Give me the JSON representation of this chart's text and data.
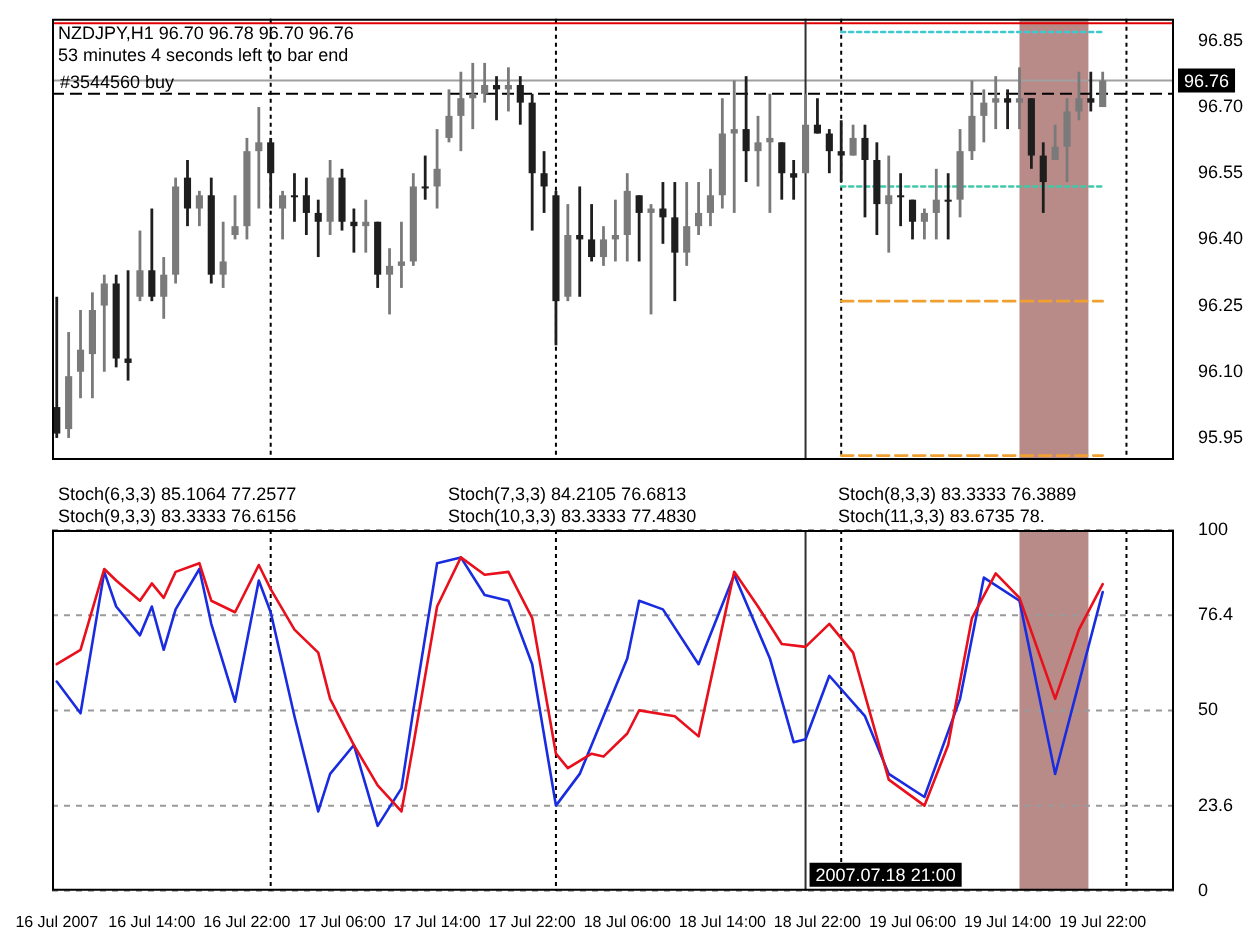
{
  "chart_data": [
    {
      "type": "candlestick",
      "title": "NZDJPY,H1 96.70 96.78 96.70 96.76",
      "subtitle": "53 minutes 4 seconds left to bar end",
      "colors": [
        "#1e1e1e",
        "#7a7a7a",
        "#7a7a7a",
        "#7a7a7a",
        "#7a7a7a",
        "#1e1e1e",
        "#1e1e1e",
        "#7a7a7a",
        "#1e1e1e",
        "#7a7a7a",
        "#7a7a7a",
        "#1e1e1e",
        "#7a7a7a",
        "#1e1e1e",
        "#7a7a7a",
        "#7a7a7a",
        "#7a7a7a",
        "#7a7a7a",
        "#1e1e1e",
        "#7a7a7a",
        "#1e1e1e",
        "#1e1e1e",
        "#1e1e1e",
        "#7a7a7a",
        "#1e1e1e",
        "#1e1e1e",
        "#7a7a7a",
        "#1e1e1e",
        "#7a7a7a",
        "#7a7a7a",
        "#7a7a7a",
        "#1e1e1e",
        "#7a7a7a",
        "#7a7a7a",
        "#7a7a7a",
        "#7a7a7a",
        "#7a7a7a",
        "#1e1e1e",
        "#7a7a7a",
        "#1e1e1e",
        "#1e1e1e",
        "#1e1e1e",
        "#1e1e1e",
        "#7a7a7a",
        "#1e1e1e",
        "#1e1e1e",
        "#7a7a7a",
        "#7a7a7a",
        "#7a7a7a",
        "#1e1e1e",
        "#7a7a7a",
        "#1e1e1e",
        "#1e1e1e",
        "#7a7a7a",
        "#7a7a7a",
        "#7a7a7a",
        "#7a7a7a",
        "#7a7a7a",
        "#1e1e1e",
        "#7a7a7a",
        "#7a7a7a",
        "#1e1e1e",
        "#1e1e1e",
        "#7a7a7a",
        "#1e1e1e",
        "#1e1e1e",
        "#1e1e1e",
        "#7a7a7a",
        "#1e1e1e",
        "#1e1e1e",
        "#7a7a7a",
        "#1e1e1e",
        "#1e1e1e",
        "#7a7a7a",
        "#7a7a7a",
        "#1e1e1e",
        "#7a7a7a",
        "#7a7a7a",
        "#7a7a7a",
        "#7a7a7a",
        "#1e1e1e",
        "#7a7a7a",
        "#1e1e1e",
        "#1e1e1e",
        "#7a7a7a",
        "#7a7a7a",
        "#7a7a7a",
        "#1e1e1e",
        "#7a7a7a"
      ],
      "x": [
        "2007-07-16T06:00",
        "2007-07-16T07:00",
        "2007-07-16T08:00",
        "2007-07-16T09:00",
        "2007-07-16T10:00",
        "2007-07-16T11:00",
        "2007-07-16T12:00",
        "2007-07-16T13:00",
        "2007-07-16T14:00",
        "2007-07-16T15:00",
        "2007-07-16T16:00",
        "2007-07-16T17:00",
        "2007-07-16T18:00",
        "2007-07-16T19:00",
        "2007-07-16T20:00",
        "2007-07-16T21:00",
        "2007-07-16T22:00",
        "2007-07-16T23:00",
        "2007-07-17T00:00",
        "2007-07-17T01:00",
        "2007-07-17T02:00",
        "2007-07-17T03:00",
        "2007-07-17T04:00",
        "2007-07-17T05:00",
        "2007-07-17T06:00",
        "2007-07-17T07:00",
        "2007-07-17T08:00",
        "2007-07-17T09:00",
        "2007-07-17T10:00",
        "2007-07-17T11:00",
        "2007-07-17T12:00",
        "2007-07-17T13:00",
        "2007-07-17T14:00",
        "2007-07-17T15:00",
        "2007-07-17T16:00",
        "2007-07-17T17:00",
        "2007-07-17T18:00",
        "2007-07-17T19:00",
        "2007-07-17T20:00",
        "2007-07-17T21:00",
        "2007-07-17T22:00",
        "2007-07-17T23:00",
        "2007-07-18T00:00",
        "2007-07-18T01:00",
        "2007-07-18T02:00",
        "2007-07-18T03:00",
        "2007-07-18T04:00",
        "2007-07-18T05:00",
        "2007-07-18T06:00",
        "2007-07-18T07:00",
        "2007-07-18T08:00",
        "2007-07-18T09:00",
        "2007-07-18T10:00",
        "2007-07-18T11:00",
        "2007-07-18T12:00",
        "2007-07-18T13:00",
        "2007-07-18T14:00",
        "2007-07-18T15:00",
        "2007-07-18T16:00",
        "2007-07-18T17:00",
        "2007-07-18T18:00",
        "2007-07-18T19:00",
        "2007-07-18T20:00",
        "2007-07-18T21:00",
        "2007-07-18T22:00",
        "2007-07-18T23:00",
        "2007-07-19T00:00",
        "2007-07-19T01:00",
        "2007-07-19T02:00",
        "2007-07-19T03:00",
        "2007-07-19T04:00",
        "2007-07-19T05:00",
        "2007-07-19T06:00",
        "2007-07-19T07:00",
        "2007-07-19T08:00",
        "2007-07-19T09:00",
        "2007-07-19T10:00",
        "2007-07-19T11:00",
        "2007-07-19T12:00",
        "2007-07-19T13:00",
        "2007-07-19T14:00",
        "2007-07-19T15:00",
        "2007-07-19T16:00",
        "2007-07-19T17:00",
        "2007-07-19T18:00",
        "2007-07-19T19:00",
        "2007-07-19T20:00",
        "2007-07-19T21:00",
        "2007-07-19T22:00"
      ],
      "ohlc": [
        [
          96.02,
          96.27,
          95.95,
          95.96
        ],
        [
          95.97,
          96.19,
          95.95,
          96.09
        ],
        [
          96.1,
          96.24,
          96.04,
          96.15
        ],
        [
          96.14,
          96.28,
          96.04,
          96.24
        ],
        [
          96.25,
          96.32,
          96.1,
          96.3
        ],
        [
          96.3,
          96.32,
          96.11,
          96.13
        ],
        [
          96.13,
          96.33,
          96.08,
          96.12
        ],
        [
          96.27,
          96.42,
          96.26,
          96.33
        ],
        [
          96.33,
          96.47,
          96.26,
          96.27
        ],
        [
          96.27,
          96.36,
          96.22,
          96.32
        ],
        [
          96.32,
          96.54,
          96.3,
          96.52
        ],
        [
          96.54,
          96.58,
          96.43,
          96.47
        ],
        [
          96.47,
          96.51,
          96.43,
          96.5
        ],
        [
          96.5,
          96.54,
          96.3,
          96.32
        ],
        [
          96.32,
          96.44,
          96.29,
          96.35
        ],
        [
          96.41,
          96.5,
          96.4,
          96.43
        ],
        [
          96.43,
          96.63,
          96.4,
          96.6
        ],
        [
          96.6,
          96.7,
          96.47,
          96.62
        ],
        [
          96.62,
          96.63,
          96.47,
          96.55
        ],
        [
          96.47,
          96.51,
          96.4,
          96.5
        ],
        [
          96.5,
          96.55,
          96.44,
          96.5
        ],
        [
          96.5,
          96.54,
          96.41,
          96.46
        ],
        [
          96.46,
          96.49,
          96.36,
          96.44
        ],
        [
          96.44,
          96.58,
          96.41,
          96.54
        ],
        [
          96.54,
          96.56,
          96.42,
          96.44
        ],
        [
          96.44,
          96.47,
          96.37,
          96.43
        ],
        [
          96.43,
          96.49,
          96.37,
          96.44
        ],
        [
          96.44,
          96.44,
          96.29,
          96.32
        ],
        [
          96.32,
          96.38,
          96.23,
          96.34
        ],
        [
          96.34,
          96.44,
          96.29,
          96.35
        ],
        [
          96.35,
          96.55,
          96.34,
          96.52
        ],
        [
          96.52,
          96.59,
          96.49,
          96.52
        ],
        [
          96.52,
          96.65,
          96.47,
          96.56
        ],
        [
          96.63,
          96.74,
          96.62,
          96.68
        ],
        [
          96.68,
          96.78,
          96.6,
          96.72
        ],
        [
          96.72,
          96.8,
          96.65,
          96.73
        ],
        [
          96.73,
          96.8,
          96.71,
          96.75
        ],
        [
          96.75,
          96.77,
          96.67,
          96.74
        ],
        [
          96.74,
          96.79,
          96.69,
          96.75
        ],
        [
          96.75,
          96.77,
          96.66,
          96.71
        ],
        [
          96.71,
          96.73,
          96.42,
          96.55
        ],
        [
          96.55,
          96.6,
          96.46,
          96.52
        ],
        [
          96.5,
          96.51,
          96.16,
          96.26
        ],
        [
          96.27,
          96.48,
          96.26,
          96.41
        ],
        [
          96.41,
          96.52,
          96.27,
          96.4
        ],
        [
          96.4,
          96.48,
          96.35,
          96.36
        ],
        [
          96.36,
          96.43,
          96.34,
          96.4
        ],
        [
          96.4,
          96.49,
          96.35,
          96.41
        ],
        [
          96.41,
          96.55,
          96.35,
          96.51
        ],
        [
          96.5,
          96.5,
          96.35,
          96.46
        ],
        [
          96.46,
          96.48,
          96.23,
          96.47
        ],
        [
          96.47,
          96.53,
          96.39,
          96.45
        ],
        [
          96.45,
          96.53,
          96.26,
          96.37
        ],
        [
          96.37,
          96.53,
          96.34,
          96.43
        ],
        [
          96.43,
          96.53,
          96.41,
          96.46
        ],
        [
          96.46,
          96.56,
          96.43,
          96.5
        ],
        [
          96.5,
          96.72,
          96.47,
          96.64
        ],
        [
          96.64,
          96.76,
          96.46,
          96.65
        ],
        [
          96.65,
          96.77,
          96.53,
          96.6
        ],
        [
          96.6,
          96.68,
          96.52,
          96.62
        ],
        [
          96.62,
          96.73,
          96.46,
          96.63
        ],
        [
          96.62,
          96.62,
          96.49,
          96.55
        ],
        [
          96.55,
          96.58,
          96.49,
          96.54
        ],
        [
          96.55,
          96.73,
          96.55,
          96.66
        ],
        [
          96.66,
          96.72,
          96.64,
          96.64
        ],
        [
          96.64,
          96.65,
          96.55,
          96.6
        ],
        [
          96.6,
          96.67,
          96.53,
          96.59
        ],
        [
          96.59,
          96.66,
          96.59,
          96.63
        ],
        [
          96.63,
          96.66,
          96.45,
          96.58
        ],
        [
          96.58,
          96.62,
          96.41,
          96.48
        ],
        [
          96.48,
          96.59,
          96.37,
          96.5
        ],
        [
          96.5,
          96.55,
          96.43,
          96.5
        ],
        [
          96.49,
          96.49,
          96.4,
          96.44
        ],
        [
          96.44,
          96.47,
          96.4,
          96.46
        ],
        [
          96.46,
          96.56,
          96.4,
          96.49
        ],
        [
          96.49,
          96.55,
          96.4,
          96.49
        ],
        [
          96.49,
          96.65,
          96.45,
          96.6
        ],
        [
          96.6,
          96.76,
          96.58,
          96.68
        ],
        [
          96.68,
          96.74,
          96.62,
          96.71
        ],
        [
          96.71,
          96.77,
          96.65,
          96.72
        ],
        [
          96.72,
          96.74,
          96.65,
          96.71
        ],
        [
          96.71,
          96.79,
          96.65,
          96.72
        ],
        [
          96.72,
          96.72,
          96.56,
          96.59
        ],
        [
          96.59,
          96.62,
          96.46,
          96.53
        ],
        [
          96.58,
          96.66,
          96.58,
          96.61
        ],
        [
          96.61,
          96.72,
          96.53,
          96.69
        ],
        [
          96.69,
          96.78,
          96.67,
          96.72
        ],
        [
          96.72,
          96.78,
          96.69,
          96.71
        ],
        [
          96.7,
          96.78,
          96.7,
          96.76
        ]
      ],
      "series": [
        {
          "type": "line",
          "x": [
            "2007-07-19T00:00",
            "2007-07-19T22:00"
          ],
          "values": [
            96.87,
            96.87
          ],
          "color": "#40c8d0",
          "line_style": "dotted"
        },
        {
          "type": "line",
          "x": [
            "2007-07-19T00:00",
            "2007-07-19T22:00"
          ],
          "values": [
            96.52,
            96.52
          ],
          "color": "#40c8a8",
          "line_style": "dotted"
        },
        {
          "type": "line",
          "x": [
            "2007-07-19T00:00",
            "2007-07-19T22:00"
          ],
          "values": [
            96.26,
            96.26
          ],
          "color": "#f0a030",
          "line_style": "dashed"
        },
        {
          "type": "line",
          "x": [
            "2007-07-19T00:00",
            "2007-07-19T22:00"
          ],
          "values": [
            95.91,
            95.91
          ],
          "color": "#f0a030",
          "line_style": "dashed"
        }
      ],
      "xlim": [
        "2007-07-16T05:36",
        "2007-07-20T04:00"
      ],
      "ylim": [
        95.9,
        96.9
      ],
      "yticks": [
        95.95,
        {
          "value": 96.1,
          "label": "96.10"
        },
        96.25,
        {
          "value": 96.4,
          "label": "96.40"
        },
        96.55,
        {
          "value": 96.7,
          "label": "96.70"
        },
        96.85
      ],
      "tick_labels": "y",
      "ref_lines": [
        {
          "axis": "y",
          "value": 96.89,
          "color": "#e00000"
        },
        {
          "axis": "y",
          "value": 96.76,
          "label": "96.76",
          "color": "#a0a0a0"
        },
        {
          "axis": "y",
          "value": 96.73,
          "label": "#3544560 buy",
          "color": "#000000",
          "line_style": "dashed"
        },
        {
          "axis": "x",
          "value": "2007-07-17",
          "color": "#000000",
          "line_style": "dotted"
        },
        {
          "axis": "x",
          "value": "2007-07-18",
          "color": "#000000",
          "line_style": "dotted"
        },
        {
          "axis": "x",
          "value": "2007-07-19",
          "color": "#000000",
          "line_style": "dotted"
        },
        {
          "axis": "x",
          "value": "2007-07-20",
          "color": "#000000",
          "line_style": "dotted"
        },
        {
          "axis": "x",
          "value": "2007-07-18T21:00",
          "color": "#303030"
        }
      ],
      "bands": [
        {
          "axis": "x",
          "from": "2007-07-19T15:00",
          "to": "2007-07-19T20:48",
          "color": "#b98b88"
        }
      ]
    },
    {
      "type": "line",
      "annotations": [
        "Stoch(6,3,3) 85.1064 77.2577",
        "Stoch(7,3,3) 84.2105 76.6813",
        "Stoch(8,3,3) 83.3333 76.3889",
        "Stoch(9,3,3) 83.3333 76.6156",
        "Stoch(10,3,3) 83.3333 77.4830",
        "Stoch(11,3,3) 83.6735 78."
      ],
      "series": [
        {
          "color": "#e8101c",
          "x": [
            "2007-07-16T06:00",
            "2007-07-16T08:00",
            "2007-07-16T10:00",
            "2007-07-16T11:00",
            "2007-07-16T13:00",
            "2007-07-16T14:00",
            "2007-07-16T15:00",
            "2007-07-16T16:00",
            "2007-07-16T18:00",
            "2007-07-16T19:00",
            "2007-07-16T21:00",
            "2007-07-16T23:00",
            "2007-07-17T00:00",
            "2007-07-17T02:00",
            "2007-07-17T04:00",
            "2007-07-17T05:00",
            "2007-07-17T07:00",
            "2007-07-17T09:00",
            "2007-07-17T11:00",
            "2007-07-17T12:00",
            "2007-07-17T14:00",
            "2007-07-17T16:00",
            "2007-07-17T18:00",
            "2007-07-17T20:00",
            "2007-07-17T22:00",
            "2007-07-18T00:00",
            "2007-07-18T01:00",
            "2007-07-18T03:00",
            "2007-07-18T04:00",
            "2007-07-18T06:00",
            "2007-07-18T07:00",
            "2007-07-18T10:00",
            "2007-07-18T12:00",
            "2007-07-18T15:00",
            "2007-07-18T17:00",
            "2007-07-18T19:00",
            "2007-07-18T21:00",
            "2007-07-18T23:00",
            "2007-07-19T01:00",
            "2007-07-19T04:00",
            "2007-07-19T07:00",
            "2007-07-19T09:00",
            "2007-07-19T11:00",
            "2007-07-19T13:00",
            "2007-07-19T15:00",
            "2007-07-19T18:00",
            "2007-07-19T20:00",
            "2007-07-19T22:00"
          ],
          "values": [
            62.8,
            66.8,
            89.2,
            86,
            80.4,
            85.2,
            81.2,
            88.4,
            90.8,
            80.4,
            77.2,
            90.3,
            83.6,
            72.4,
            66,
            53.2,
            40.4,
            29.2,
            22,
            40.4,
            78.8,
            92.4,
            87.6,
            88.4,
            75.6,
            38,
            34,
            38,
            37.2,
            43.6,
            50,
            48.4,
            42.8,
            88.4,
            78.8,
            68.4,
            67.6,
            74,
            66,
            30.8,
            23.6,
            40.4,
            75.6,
            88,
            81.2,
            53.2,
            72.4,
            85
          ]
        },
        {
          "color": "#1a2ce0",
          "x": [
            "2007-07-16T06:00",
            "2007-07-16T08:00",
            "2007-07-16T10:00",
            "2007-07-16T11:00",
            "2007-07-16T13:00",
            "2007-07-16T14:00",
            "2007-07-16T15:00",
            "2007-07-16T16:00",
            "2007-07-16T18:00",
            "2007-07-16T19:00",
            "2007-07-16T21:00",
            "2007-07-16T23:00",
            "2007-07-17T00:00",
            "2007-07-17T02:00",
            "2007-07-17T04:00",
            "2007-07-17T05:00",
            "2007-07-17T07:00",
            "2007-07-17T09:00",
            "2007-07-17T11:00",
            "2007-07-17T12:00",
            "2007-07-17T14:00",
            "2007-07-17T16:00",
            "2007-07-17T18:00",
            "2007-07-17T20:00",
            "2007-07-17T22:00",
            "2007-07-18T00:00",
            "2007-07-18T02:00",
            "2007-07-18T03:00",
            "2007-07-18T06:00",
            "2007-07-18T07:00",
            "2007-07-18T09:00",
            "2007-07-18T12:00",
            "2007-07-18T15:00",
            "2007-07-18T18:00",
            "2007-07-18T20:00",
            "2007-07-18T21:00",
            "2007-07-18T23:00",
            "2007-07-19T02:00",
            "2007-07-19T04:00",
            "2007-07-19T07:00",
            "2007-07-19T10:00",
            "2007-07-19T12:00",
            "2007-07-19T15:00",
            "2007-07-19T18:00",
            "2007-07-19T22:00"
          ],
          "values": [
            58,
            49.2,
            88.4,
            78.8,
            70.8,
            78.8,
            66.8,
            78,
            89.2,
            74,
            52.4,
            86,
            77.2,
            48.4,
            22,
            32.4,
            40.4,
            18,
            28.4,
            50,
            90.8,
            92.4,
            82,
            80.4,
            62.8,
            23.6,
            32.4,
            40.4,
            64.4,
            80.4,
            78,
            62.8,
            87.6,
            64.4,
            41.2,
            42,
            59.6,
            48.4,
            32.4,
            26,
            53.2,
            86.8,
            80.4,
            32.4,
            82.8
          ]
        }
      ],
      "xlim": [
        "2007-07-16T05:36",
        "2007-07-20T04:00"
      ],
      "ylim": [
        0,
        100
      ],
      "xticks": [
        {
          "value": "2007-07-16T06:00",
          "label": "16 Jul 2007"
        },
        {
          "value": "2007-07-16T14:00",
          "label": "16 Jul 14:00"
        },
        {
          "value": "2007-07-16T22:00",
          "label": "16 Jul 22:00"
        },
        {
          "value": "2007-07-17T06:00",
          "label": "17 Jul 06:00"
        },
        {
          "value": "2007-07-17T14:00",
          "label": "17 Jul 14:00"
        },
        {
          "value": "2007-07-17T22:00",
          "label": "17 Jul 22:00"
        },
        {
          "value": "2007-07-18T06:00",
          "label": "18 Jul 06:00"
        },
        {
          "value": "2007-07-18T14:00",
          "label": "18 Jul 14:00"
        },
        {
          "value": "2007-07-18T22:00",
          "label": "18 Jul 22:00"
        },
        {
          "value": "2007-07-19T06:00",
          "label": "19 Jul 06:00"
        },
        {
          "value": "2007-07-19T14:00",
          "label": "19 Jul 14:00"
        },
        {
          "value": "2007-07-19T22:00",
          "label": "19 Jul 22:00"
        }
      ],
      "yticks": [
        0,
        23.6,
        50,
        76.4,
        100
      ],
      "grid": "y",
      "ref_lines": [
        {
          "axis": "x",
          "value": "2007-07-17",
          "color": "#000000",
          "line_style": "dotted"
        },
        {
          "axis": "x",
          "value": "2007-07-18",
          "color": "#000000",
          "line_style": "dotted"
        },
        {
          "axis": "x",
          "value": "2007-07-19",
          "color": "#000000",
          "line_style": "dotted"
        },
        {
          "axis": "x",
          "value": "2007-07-20",
          "color": "#000000",
          "line_style": "dotted"
        },
        {
          "axis": "x",
          "value": "2007-07-18T21:00",
          "label": "2007.07.18 21:00",
          "color": "#303030"
        }
      ],
      "bands": [
        {
          "axis": "x",
          "from": "2007-07-19T15:00",
          "to": "2007-07-19T20:48",
          "color": "#b98b88"
        }
      ]
    }
  ]
}
